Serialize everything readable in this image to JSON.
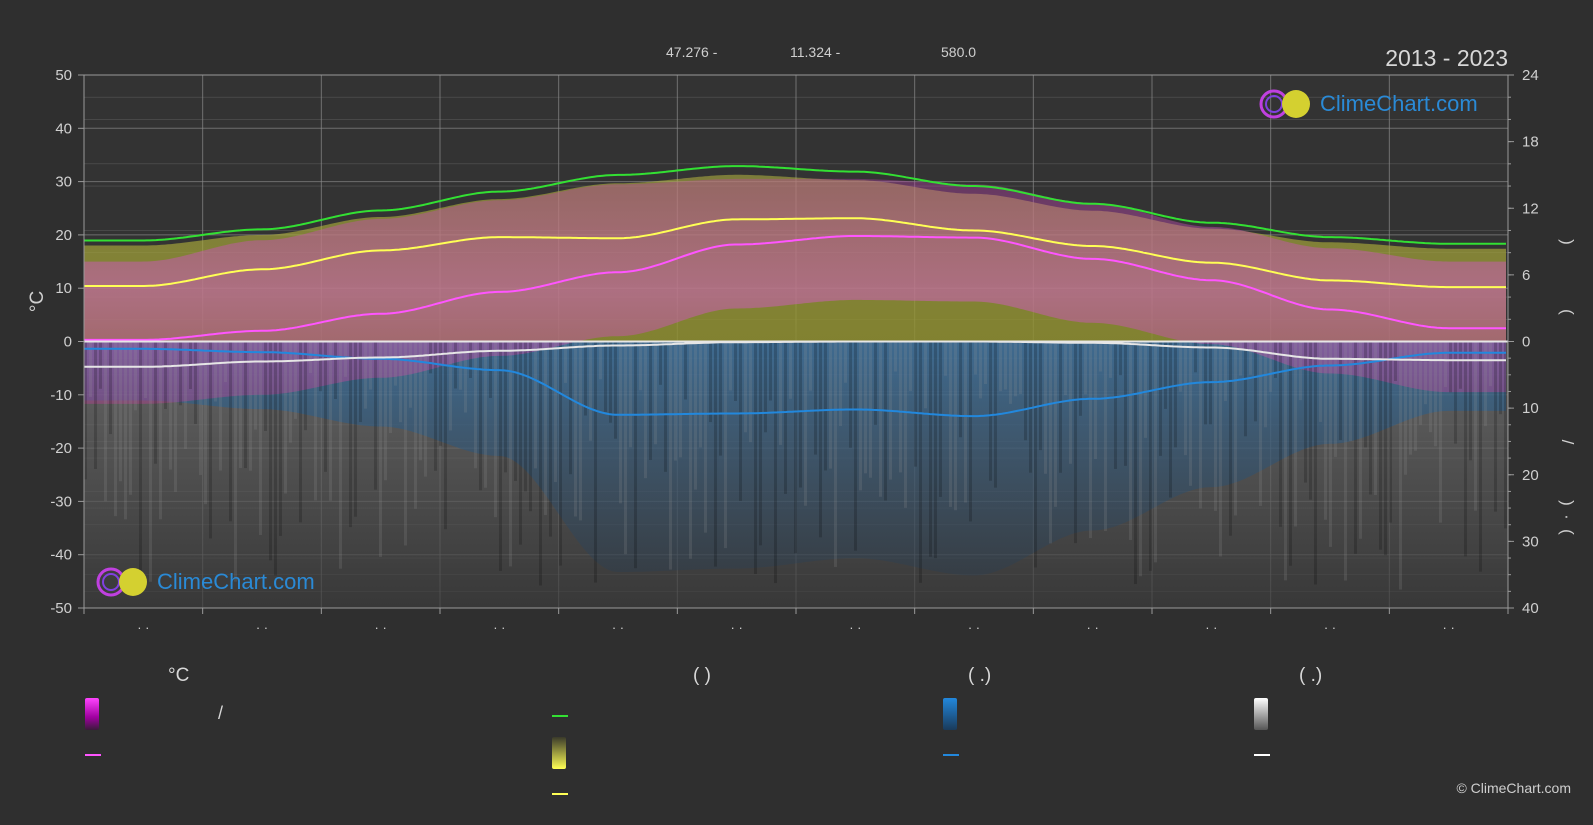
{
  "header": {
    "period": "2013 - 2023",
    "lat": "47.276 -",
    "lon": "11.324 -",
    "elev": "580.0"
  },
  "logo_text": "ClimeChart.com",
  "copyright": "© ClimeChart.com",
  "legend": {
    "col1_head": "°C",
    "col2_head": "(          )",
    "col3_head": "(   .)",
    "col4_head": "(   .)",
    "slash": "/"
  },
  "colors": {
    "background": "#2f2f2f",
    "daylight": "#33e033",
    "sunshine": "#ffff55",
    "temp_max": "#ff55ff",
    "rain": "#2288dd",
    "snow": "#e6e6e6",
    "grid": "#6e6e6e"
  },
  "chart_data": {
    "type": "area",
    "months": [
      "· ·",
      "· ·",
      "· ·",
      "· ·",
      "· ·",
      "· ·",
      "· ·",
      "· ·",
      "· ·",
      "· ·",
      "· ·",
      "· ·"
    ],
    "left_axis": {
      "label": "°C",
      "ylim": [
        -50,
        50
      ],
      "ticks": [
        50,
        40,
        30,
        20,
        10,
        0,
        -10,
        -20,
        -30,
        -40,
        -50
      ]
    },
    "right_axis_top": {
      "ticks": [
        24,
        18,
        12,
        6,
        0
      ],
      "label_fragments": [
        ")",
        "("
      ]
    },
    "right_axis_bottom": {
      "ticks": [
        10,
        20,
        30,
        40
      ],
      "label_fragments": [
        "/",
        ")",
        "·",
        "("
      ]
    },
    "series": [
      {
        "key": "daylight",
        "unit": "h",
        "values": [
          9.1,
          10.1,
          11.8,
          13.5,
          15.0,
          15.8,
          15.3,
          14.0,
          12.4,
          10.7,
          9.4,
          8.8
        ]
      },
      {
        "key": "sunshine",
        "unit": "h",
        "values": [
          5.0,
          6.5,
          8.2,
          9.4,
          9.3,
          11.0,
          11.1,
          10.0,
          8.6,
          7.1,
          5.5,
          4.9
        ]
      },
      {
        "key": "temp_max_mean",
        "unit": "°C",
        "values": [
          0.3,
          2.0,
          5.2,
          9.3,
          13.0,
          18.2,
          19.8,
          19.5,
          15.5,
          11.5,
          6.0,
          2.5
        ]
      },
      {
        "key": "temp_max_range_top",
        "unit": "°C",
        "values": [
          15,
          19,
          23,
          26.5,
          29.5,
          30.5,
          30.5,
          29.5,
          26,
          21.5,
          17.5,
          15
        ]
      },
      {
        "key": "rain",
        "unit": "mm/day",
        "values": [
          1.1,
          1.6,
          2.6,
          4.3,
          11.0,
          10.8,
          10.2,
          11.2,
          8.6,
          6.1,
          3.6,
          1.7
        ]
      },
      {
        "key": "snow",
        "unit": "cm/day",
        "values": [
          3.8,
          3.0,
          2.4,
          1.4,
          0.6,
          0.1,
          0.0,
          0.0,
          0.2,
          0.9,
          2.6,
          2.8
        ]
      }
    ]
  }
}
